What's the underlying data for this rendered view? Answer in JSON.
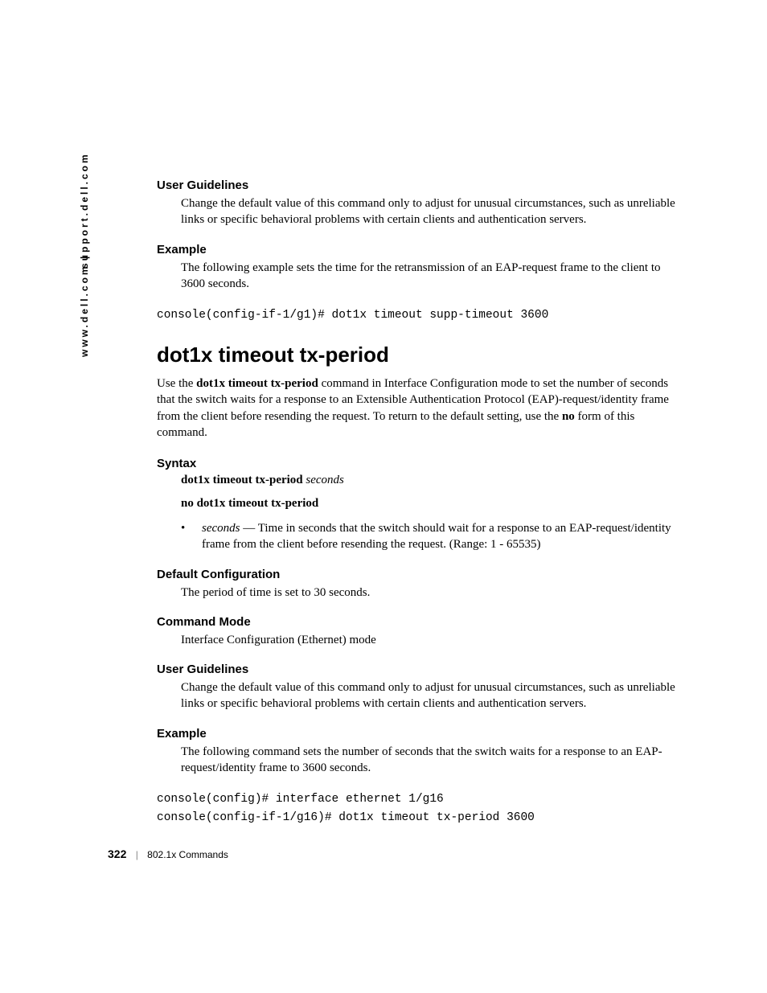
{
  "side": {
    "url1": "www.dell.com",
    "sep": " | ",
    "url2": "support.dell.com"
  },
  "sections": {
    "ug1": {
      "heading": "User Guidelines",
      "text": "Change the default value of this command only to adjust for unusual circumstances, such as unreliable links or specific behavioral problems with certain clients and authentication servers."
    },
    "ex1": {
      "heading": "Example",
      "text": "The following example sets the time for the retransmission of an EAP-request frame to the client to 3600 seconds.",
      "code": "console(config-if-1/g1)# dot1x timeout supp-timeout 3600"
    },
    "title": "dot1x timeout tx-period",
    "intro_pre": "Use the ",
    "intro_bold": "dot1x timeout tx-period",
    "intro_mid": " command in Interface Configuration mode to set the number of seconds that the switch waits for a response to an Extensible Authentication Protocol (EAP)-request/identity frame from the client before resending the request. To return to the default setting, use the ",
    "intro_no": "no",
    "intro_post": " form of this command.",
    "syntax": {
      "heading": "Syntax",
      "line1_bold": "dot1x timeout tx-period ",
      "line1_italic": "seconds",
      "line2_bold": "no dot1x timeout tx-period",
      "bullet_italic": "seconds",
      "bullet_text": " — Time in seconds that the switch should wait for a response to an EAP-request/identity frame from the client before resending the request. (Range: 1 - 65535)"
    },
    "defcfg": {
      "heading": "Default Configuration",
      "text": "The period of time is set to 30 seconds."
    },
    "cmdmode": {
      "heading": "Command Mode",
      "text": "Interface Configuration (Ethernet) mode"
    },
    "ug2": {
      "heading": "User Guidelines",
      "text": "Change the default value of this command only to adjust for unusual circumstances, such as unreliable links or specific behavioral problems with certain clients and authentication servers."
    },
    "ex2": {
      "heading": "Example",
      "text": "The following command sets the number of seconds that the switch waits for a response to an EAP-request/identity frame to 3600 seconds.",
      "code1": "console(config)# interface ethernet 1/g16",
      "code2": "console(config-if-1/g16)# dot1x timeout tx-period 3600"
    }
  },
  "footer": {
    "page": "322",
    "section": "802.1x Commands"
  },
  "bullet_glyph": "•"
}
